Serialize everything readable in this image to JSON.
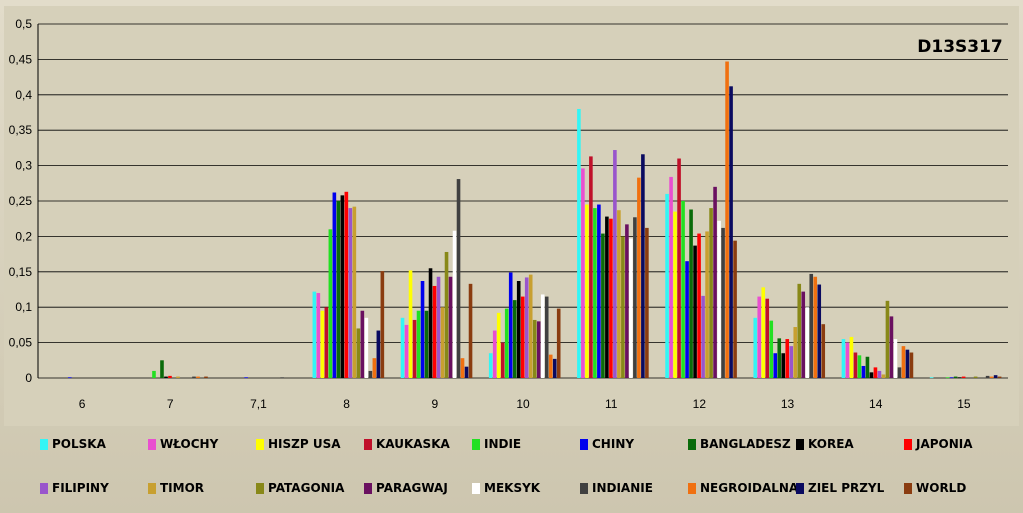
{
  "chart_data": {
    "type": "bar",
    "title": "D13S317",
    "xlabel": "",
    "ylabel": "",
    "ylim": [
      0,
      0.5
    ],
    "yticks": [
      "0",
      "0,05",
      "0,1",
      "0,15",
      "0,2",
      "0,25",
      "0,3",
      "0,35",
      "0,4",
      "0,45",
      "0,5"
    ],
    "grid": true,
    "legend_position": "bottom",
    "categories": [
      "6",
      "7",
      "7,1",
      "8",
      "9",
      "10",
      "11",
      "12",
      "13",
      "14",
      "15"
    ],
    "series": [
      {
        "name": "POLSKA",
        "color": "#33f5f5",
        "values": [
          0,
          0,
          0,
          0.122,
          0.085,
          0.035,
          0.38,
          0.26,
          0.085,
          0.055,
          0.001
        ]
      },
      {
        "name": "WŁOCHY",
        "color": "#e94fd0",
        "values": [
          0,
          0,
          0,
          0.12,
          0.075,
          0.067,
          0.296,
          0.284,
          0.115,
          0.05,
          0
        ]
      },
      {
        "name": "HISZP USA",
        "color": "#ffff00",
        "values": [
          0,
          0,
          0,
          0.095,
          0.152,
          0.092,
          0.245,
          0.235,
          0.128,
          0.058,
          0
        ]
      },
      {
        "name": "KAUKASKA",
        "color": "#c0102a",
        "values": [
          0,
          0,
          0,
          0.1,
          0.082,
          0.05,
          0.313,
          0.31,
          0.112,
          0.036,
          0
        ]
      },
      {
        "name": "INDIE",
        "color": "#22e022",
        "values": [
          0,
          0.01,
          0,
          0.21,
          0.095,
          0.098,
          0.24,
          0.25,
          0.081,
          0.032,
          0.001
        ]
      },
      {
        "name": "CHINY",
        "color": "#0000ee",
        "values": [
          0.001,
          0,
          0.001,
          0.262,
          0.137,
          0.149,
          0.245,
          0.165,
          0.035,
          0.017,
          0.001
        ]
      },
      {
        "name": "BANGLADESZ",
        "color": "#0a6b0a",
        "values": [
          0,
          0.025,
          0,
          0.25,
          0.095,
          0.11,
          0.204,
          0.238,
          0.056,
          0.03,
          0.002
        ]
      },
      {
        "name": "KOREA",
        "color": "#000000",
        "values": [
          0,
          0.002,
          0,
          0.258,
          0.155,
          0.137,
          0.228,
          0.187,
          0.035,
          0.008,
          0.001
        ]
      },
      {
        "name": "JAPONIA",
        "color": "#ff0000",
        "values": [
          0,
          0.003,
          0,
          0.263,
          0.13,
          0.115,
          0.225,
          0.204,
          0.055,
          0.015,
          0.002
        ]
      },
      {
        "name": "FILIPINY",
        "color": "#9955cc",
        "values": [
          0,
          0,
          0,
          0.24,
          0.143,
          0.142,
          0.322,
          0.116,
          0.045,
          0.01,
          0
        ]
      },
      {
        "name": "TIMOR",
        "color": "#c8a030",
        "values": [
          0,
          0.002,
          0,
          0.242,
          0.1,
          0.146,
          0.237,
          0.207,
          0.072,
          0.005,
          0
        ]
      },
      {
        "name": "PATAGONIA",
        "color": "#888818",
        "values": [
          0,
          0,
          0,
          0.07,
          0.178,
          0.082,
          0.2,
          0.24,
          0.133,
          0.109,
          0.002
        ]
      },
      {
        "name": "PARAGWAJ",
        "color": "#6a1060",
        "values": [
          0,
          0,
          0,
          0.095,
          0.143,
          0.08,
          0.217,
          0.27,
          0.122,
          0.087,
          0
        ]
      },
      {
        "name": "MEKSYK",
        "color": "#ffffff",
        "values": [
          0,
          0,
          0,
          0.085,
          0.208,
          0.118,
          0.197,
          0.222,
          0.1,
          0.055,
          0
        ]
      },
      {
        "name": "INDIANIE",
        "color": "#404040",
        "values": [
          0,
          0.002,
          0.001,
          0.01,
          0.281,
          0.115,
          0.227,
          0.212,
          0.147,
          0.015,
          0.003
        ]
      },
      {
        "name": "NEGROIDALNA",
        "color": "#f07010",
        "values": [
          0,
          0.002,
          0,
          0.028,
          0.028,
          0.033,
          0.283,
          0.447,
          0.143,
          0.045,
          0.002
        ]
      },
      {
        "name": "ZIEL PRZYL",
        "color": "#0a0a60",
        "values": [
          0,
          0,
          0,
          0.067,
          0.016,
          0.027,
          0.316,
          0.412,
          0.132,
          0.04,
          0.004
        ]
      },
      {
        "name": "WORLD",
        "color": "#8a3c10",
        "values": [
          0,
          0.002,
          0,
          0.151,
          0.133,
          0.098,
          0.212,
          0.194,
          0.076,
          0.036,
          0.002
        ]
      }
    ]
  }
}
